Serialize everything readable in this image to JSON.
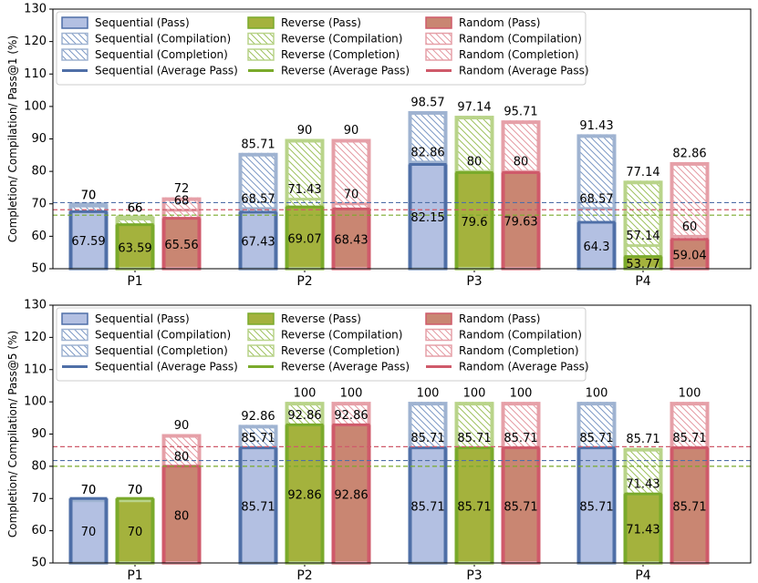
{
  "colors": {
    "sequential": "#4f6fa7",
    "sequential_pass": "#b3c0e2",
    "sequential_hatch": "#7d99c5",
    "sequential_edge": "#9fb3d1",
    "reverse": "#7aaa2b",
    "reverse_pass": "#a4b23d",
    "reverse_hatch": "#9ec15e",
    "reverse_edge": "#b9d48a",
    "random": "#cf5a6a",
    "random_pass": "#c98672",
    "random_hatch": "#e49aa2",
    "random_edge": "#e6a0a8"
  },
  "legend": [
    {
      "label": "Sequential (Pass)",
      "kind": "pass",
      "strategy": "sequential"
    },
    {
      "label": "Reverse (Pass)",
      "kind": "pass",
      "strategy": "reverse"
    },
    {
      "label": "Random (Pass)",
      "kind": "pass",
      "strategy": "random"
    },
    {
      "label": "Sequential (Compilation)",
      "kind": "compilation",
      "strategy": "sequential"
    },
    {
      "label": "Reverse (Compilation)",
      "kind": "compilation",
      "strategy": "reverse"
    },
    {
      "label": "Random (Compilation)",
      "kind": "compilation",
      "strategy": "random"
    },
    {
      "label": "Sequential (Completion)",
      "kind": "completion",
      "strategy": "sequential"
    },
    {
      "label": "Reverse (Completion)",
      "kind": "completion",
      "strategy": "reverse"
    },
    {
      "label": "Random (Completion)",
      "kind": "completion",
      "strategy": "random"
    },
    {
      "label": "Sequential (Average Pass)",
      "kind": "average",
      "strategy": "sequential"
    },
    {
      "label": "Reverse (Average Pass)",
      "kind": "average",
      "strategy": "reverse"
    },
    {
      "label": "Random (Average Pass)",
      "kind": "average",
      "strategy": "random"
    }
  ],
  "chart_data": [
    {
      "type": "bar",
      "ylabel": "Completion/ Compilation/ Pass@1 (%)",
      "ylim": [
        50,
        130
      ],
      "yticks": [
        50,
        60,
        70,
        80,
        90,
        100,
        110,
        120,
        130
      ],
      "categories": [
        "P1",
        "P2",
        "P3",
        "P4"
      ],
      "series": [
        {
          "name": "Sequential",
          "strategy": "sequential",
          "pass": [
            67.59,
            67.43,
            82.15,
            64.3
          ],
          "compilation": [
            70,
            68.57,
            82.86,
            68.57
          ],
          "completion": [
            70,
            85.71,
            98.57,
            91.43
          ],
          "average_pass": 70.37
        },
        {
          "name": "Reverse",
          "strategy": "reverse",
          "pass": [
            63.59,
            69.07,
            79.6,
            53.77
          ],
          "compilation": [
            66,
            71.43,
            80,
            57.14
          ],
          "completion": [
            66,
            90,
            97.14,
            77.14
          ],
          "average_pass": 66.51
        },
        {
          "name": "Random",
          "strategy": "random",
          "pass": [
            65.56,
            68.43,
            79.63,
            59.04
          ],
          "compilation": [
            68,
            70,
            80,
            60
          ],
          "completion": [
            72,
            90,
            95.71,
            82.86
          ],
          "average_pass": 68.17
        }
      ],
      "labels": [
        [
          [
            "70",
            "70",
            "67.59"
          ],
          [
            "66",
            "66",
            "63.59"
          ],
          [
            "72",
            "68",
            "65.56"
          ]
        ],
        [
          [
            "85.71",
            "68.57",
            "67.43"
          ],
          [
            "90",
            "71.43",
            "69.07"
          ],
          [
            "90",
            "70",
            "68.43"
          ]
        ],
        [
          [
            "98.57",
            "82.86",
            "82.15"
          ],
          [
            "97.14",
            "80",
            "79.6"
          ],
          [
            "95.71",
            "80",
            "79.63"
          ]
        ],
        [
          [
            "91.43",
            "68.57",
            "64.3"
          ],
          [
            "77.14",
            "57.14",
            "53.77"
          ],
          [
            "82.86",
            "60",
            "59.04"
          ]
        ]
      ]
    },
    {
      "type": "bar",
      "ylabel": "Completion/ Compilation/ Pass@5 (%)",
      "ylim": [
        50,
        130
      ],
      "yticks": [
        50,
        60,
        70,
        80,
        90,
        100,
        110,
        120,
        130
      ],
      "categories": [
        "P1",
        "P2",
        "P3",
        "P4"
      ],
      "series": [
        {
          "name": "Sequential",
          "strategy": "sequential",
          "pass": [
            70,
            85.71,
            85.71,
            85.71
          ],
          "compilation": [
            70,
            85.71,
            85.71,
            85.71
          ],
          "completion": [
            70,
            92.86,
            100,
            100
          ],
          "average_pass": 81.78
        },
        {
          "name": "Reverse",
          "strategy": "reverse",
          "pass": [
            70,
            92.86,
            85.71,
            71.43
          ],
          "compilation": [
            70,
            92.86,
            85.71,
            71.43
          ],
          "completion": [
            70,
            100,
            100,
            85.71
          ],
          "average_pass": 80.0
        },
        {
          "name": "Random",
          "strategy": "random",
          "pass": [
            80,
            92.86,
            85.71,
            85.71
          ],
          "compilation": [
            80,
            92.86,
            85.71,
            85.71
          ],
          "completion": [
            90,
            100,
            100,
            100
          ],
          "average_pass": 86.07
        }
      ],
      "labels": [
        [
          [
            "70",
            "70",
            "70"
          ],
          [
            "70",
            "70",
            "70"
          ],
          [
            "90",
            "80",
            "80"
          ]
        ],
        [
          [
            "92.86",
            "85.71",
            "85.71"
          ],
          [
            "100",
            "92.86",
            "92.86"
          ],
          [
            "100",
            "92.86",
            "92.86"
          ]
        ],
        [
          [
            "100",
            "85.71",
            "85.71"
          ],
          [
            "100",
            "85.71",
            "85.71"
          ],
          [
            "100",
            "85.71",
            "85.71"
          ]
        ],
        [
          [
            "100",
            "85.71",
            "85.71"
          ],
          [
            "85.71",
            "71.43",
            "71.43"
          ],
          [
            "100",
            "85.71",
            "85.71"
          ]
        ]
      ]
    }
  ]
}
